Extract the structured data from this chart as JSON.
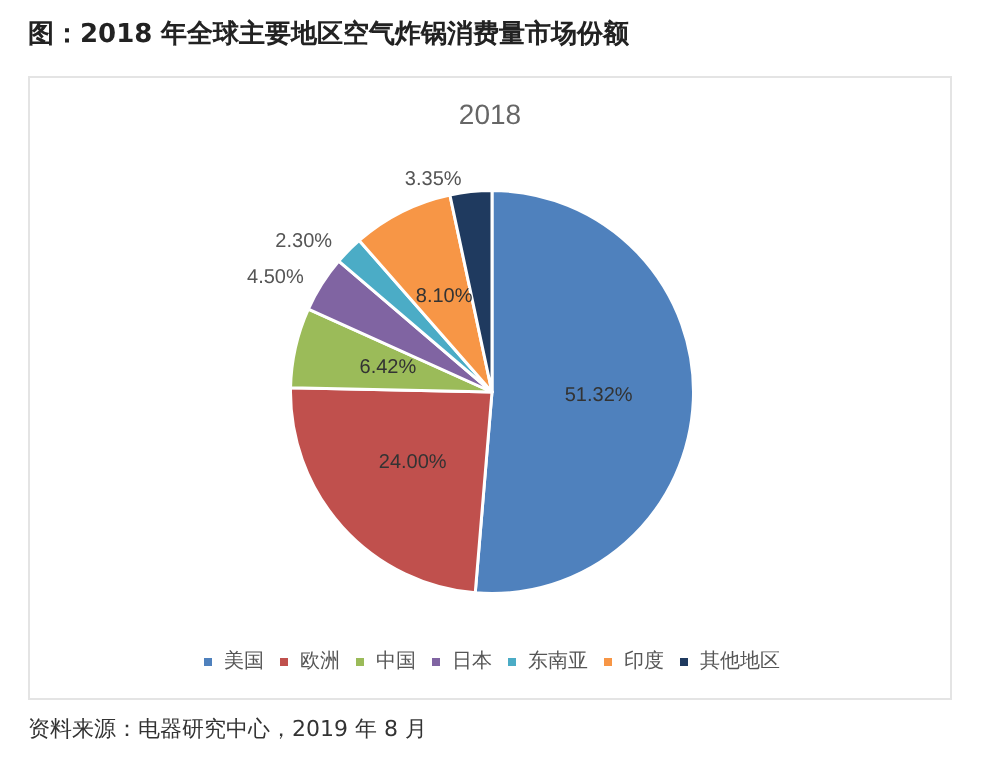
{
  "chart_data": {
    "type": "pie",
    "title": "图：2018 年全球主要地区空气炸锅消费量市场份额",
    "subtitle": "2018",
    "categories": [
      "美国",
      "欧洲",
      "中国",
      "日本",
      "东南亚",
      "印度",
      "其他地区"
    ],
    "values": [
      51.32,
      24.0,
      6.42,
      4.5,
      2.3,
      8.1,
      3.35
    ],
    "value_labels": [
      "51.32%",
      "24.00%",
      "6.42%",
      "4.50%",
      "2.30%",
      "8.10%",
      "3.35%"
    ],
    "colors": [
      "#4f81bd",
      "#c0504d",
      "#9bbb59",
      "#8064a2",
      "#4bacc6",
      "#f79646",
      "#1f3a5f"
    ],
    "legend": "bottom",
    "annotations": [
      "资料来源：电器研究中心，2019 年 8 月"
    ]
  }
}
